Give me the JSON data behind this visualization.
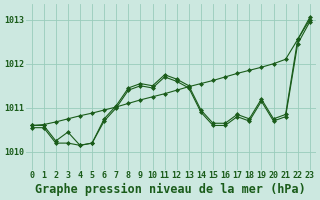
{
  "title": "Graphe pression niveau de la mer (hPa)",
  "background_color": "#cce8e0",
  "grid_color": "#99ccbb",
  "line_color": "#1a5c1a",
  "xlim": [
    -0.5,
    23.5
  ],
  "ylim": [
    1009.6,
    1013.35
  ],
  "yticks": [
    1010,
    1011,
    1012,
    1013
  ],
  "xticks": [
    0,
    1,
    2,
    3,
    4,
    5,
    6,
    7,
    8,
    9,
    10,
    11,
    12,
    13,
    14,
    15,
    16,
    17,
    18,
    19,
    20,
    21,
    22,
    23
  ],
  "line_straight_y": [
    1010.6,
    1010.62,
    1010.68,
    1010.75,
    1010.82,
    1010.88,
    1010.95,
    1011.02,
    1011.1,
    1011.18,
    1011.25,
    1011.32,
    1011.4,
    1011.48,
    1011.55,
    1011.62,
    1011.7,
    1011.78,
    1011.85,
    1011.92,
    1012.0,
    1012.1,
    1012.55,
    1013.0
  ],
  "line_wiggly1_y": [
    1010.6,
    1010.6,
    1010.25,
    1010.45,
    1010.15,
    1010.2,
    1010.75,
    1011.05,
    1011.45,
    1011.55,
    1011.5,
    1011.75,
    1011.65,
    1011.5,
    1010.95,
    1010.65,
    1010.65,
    1010.85,
    1010.75,
    1011.2,
    1010.75,
    1010.85,
    1012.55,
    1013.05
  ],
  "line_wiggly2_y": [
    1010.55,
    1010.55,
    1010.2,
    1010.2,
    1010.15,
    1010.2,
    1010.7,
    1011.0,
    1011.4,
    1011.5,
    1011.45,
    1011.7,
    1011.6,
    1011.45,
    1010.9,
    1010.6,
    1010.6,
    1010.8,
    1010.7,
    1011.15,
    1010.7,
    1010.8,
    1012.45,
    1012.95
  ],
  "title_fontsize": 8.5,
  "tick_fontsize": 6.0
}
